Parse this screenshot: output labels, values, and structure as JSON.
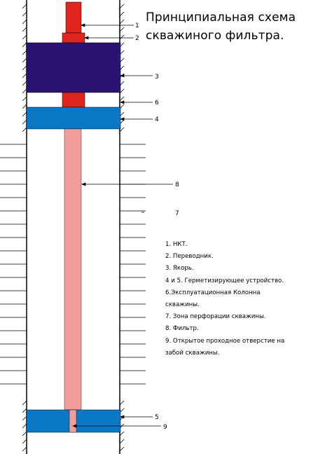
{
  "title": {
    "line1": "Принципиальная схема",
    "line2": "скважиного фильтра."
  },
  "labels": {
    "n1": "1",
    "n2": "2",
    "n3": "3",
    "n6": "6",
    "n4": "4",
    "n8": "8",
    "n7": "7",
    "n5": "5",
    "n9": "9"
  },
  "legend": [
    "1. НКТ.",
    "2. Переводник.",
    "3. Якорь.",
    "4 и 5. Герметизирующее устройство.",
    "6.Эксплуатационная Колоннa",
    "скважины.",
    "7. Зона перфорации скважины.",
    "8. Фильтр.",
    "9. Открытое проходное отверстие на",
    "забой скважины."
  ],
  "colors": {
    "tubing": "#e0241e",
    "anchor": "#2a1470",
    "packer": "#0a78c4",
    "filter": "#f29c9c",
    "line": "#000000"
  }
}
